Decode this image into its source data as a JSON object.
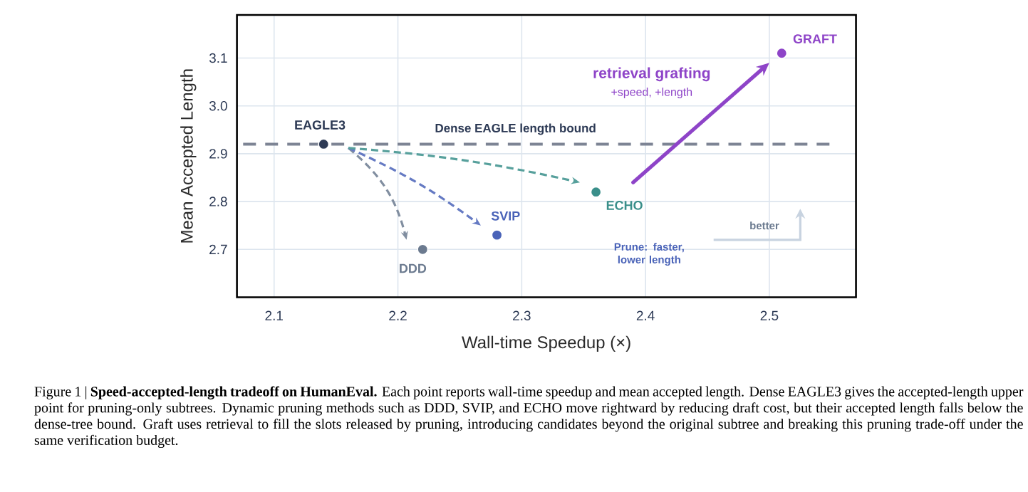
{
  "chart_data": {
    "type": "scatter",
    "xlabel": "Wall-time Speedup (×)",
    "ylabel": "Mean Accepted Length",
    "xlim": [
      2.07,
      2.57
    ],
    "ylim": [
      2.6,
      3.19
    ],
    "xticks": [
      2.1,
      2.2,
      2.3,
      2.4,
      2.5
    ],
    "yticks": [
      2.7,
      2.8,
      2.9,
      {
        "value": 3.0,
        "label": "3.0"
      },
      3.1
    ],
    "grid": true,
    "marker": "circle",
    "series": [
      {
        "name": "EAGLE3",
        "color": "#2d3a55",
        "x": [
          2.14
        ],
        "values": [
          2.92
        ]
      },
      {
        "name": "DDD",
        "color": "#6b7a8f",
        "x": [
          2.22
        ],
        "values": [
          2.7
        ]
      },
      {
        "name": "SVIP",
        "color": "#4a63b8",
        "x": [
          2.28
        ],
        "values": [
          2.73
        ]
      },
      {
        "name": "ECHO",
        "color": "#3a8f8a",
        "x": [
          2.36
        ],
        "values": [
          2.82
        ]
      },
      {
        "name": "GRAFT",
        "color": "#8e44c8",
        "x": [
          2.51
        ],
        "values": [
          3.11
        ]
      }
    ],
    "ref_lines": [
      {
        "axis": "y",
        "value": 2.92,
        "label": "Dense EAGLE length bound",
        "color": "#7d8494",
        "line_style": "dashed"
      }
    ],
    "annotations": [
      "retrieval grafting",
      "+speed, +length",
      "better",
      "Prune: faster, lower length",
      "Figure 1 | **Speed-accepted-length tradeoff on HumanEval.** Each point reports wall-time speedup and mean accepted length. Dense EAGLE3 gives the accepted-length upper point for pruning-only subtrees. Dynamic pruning methods such as DDD, SVIP, and ECHO move rightward by reducing draft cost, but their accepted length falls below the dense-tree bound. Graft uses retrieval to fill the slots released by pruning, introducing candidates beyond the original subtree and breaking this pruning trade-off under the same verification budget."
    ]
  }
}
